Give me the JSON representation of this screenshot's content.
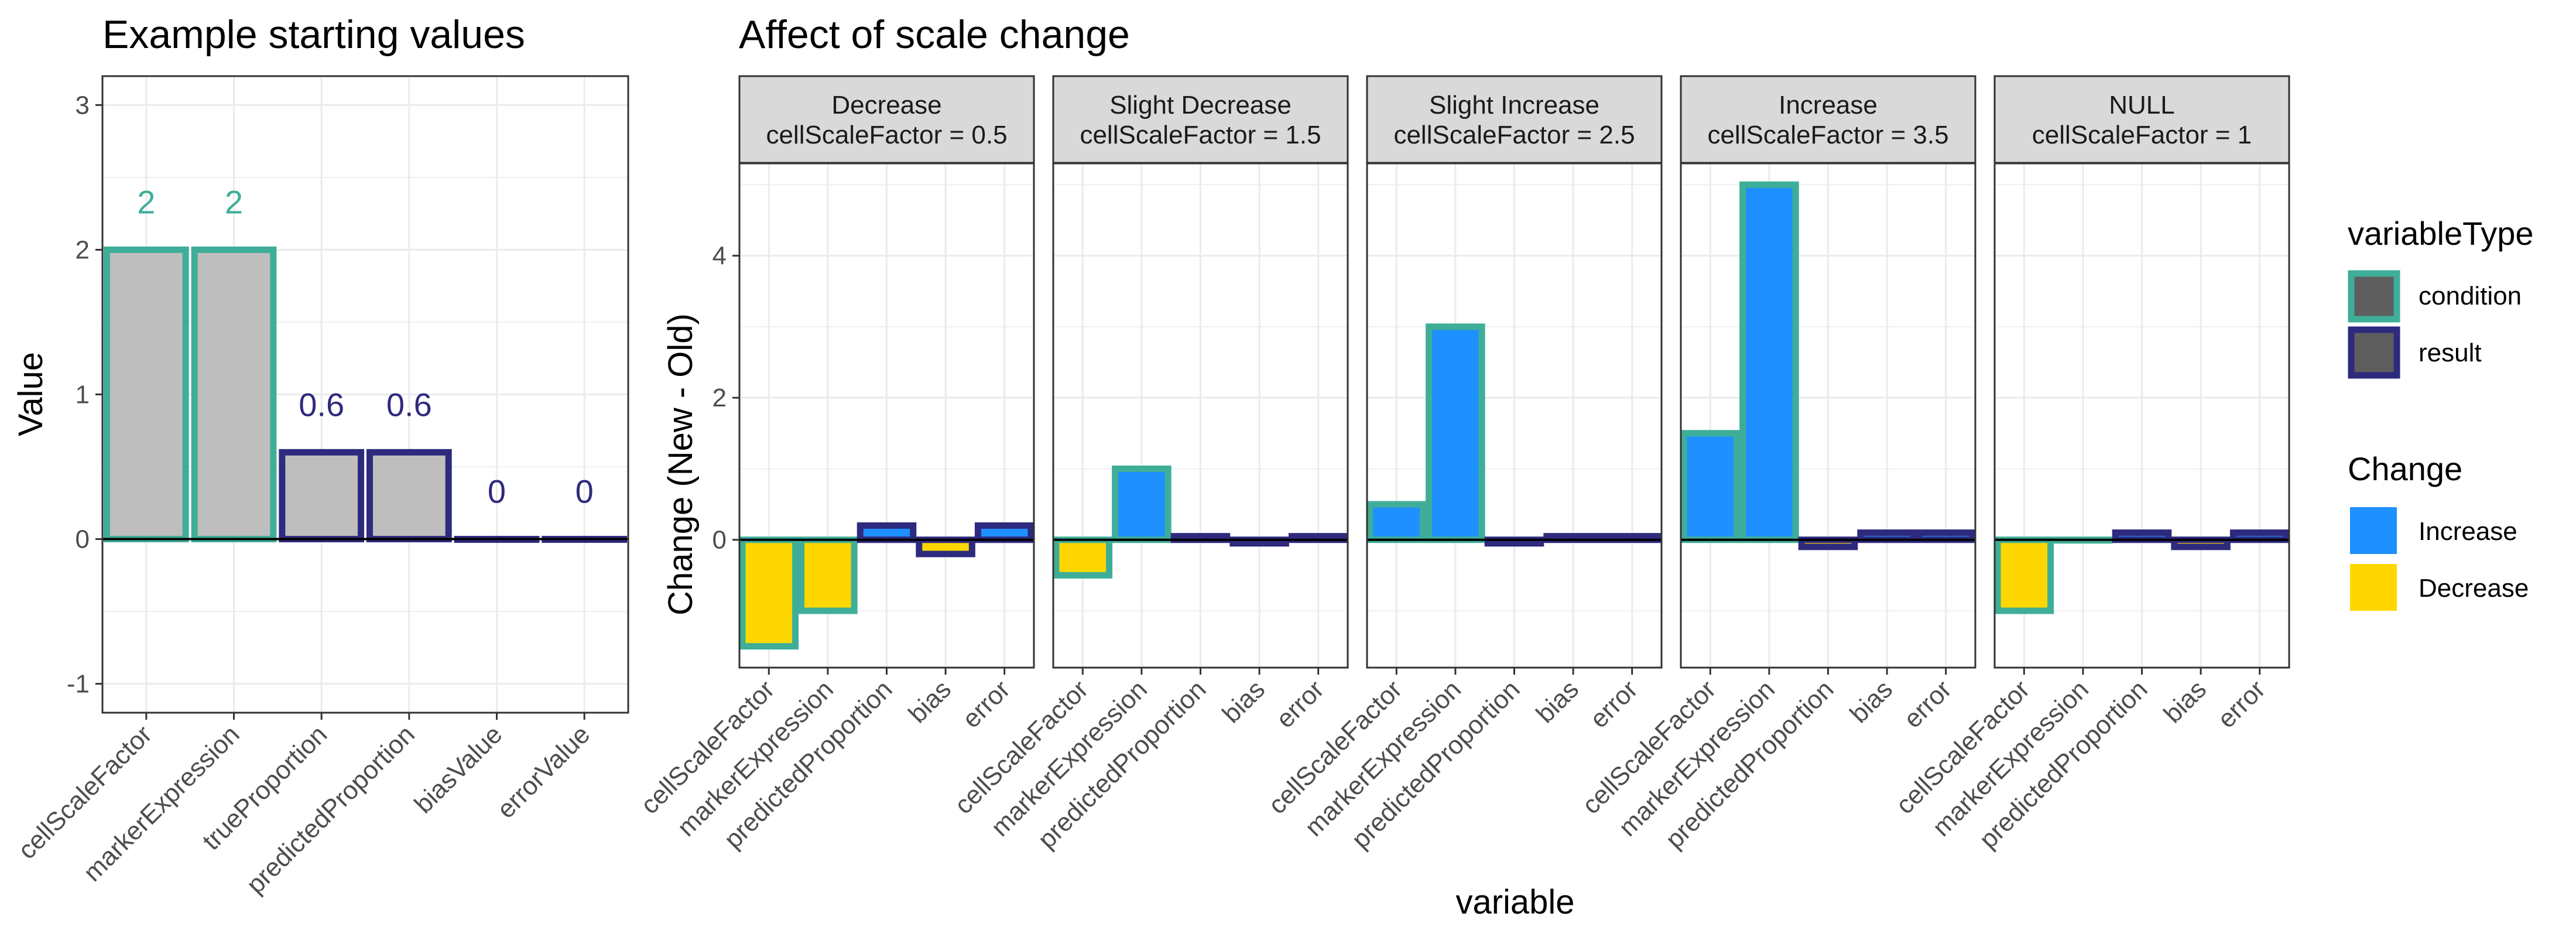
{
  "colors": {
    "condition": "#3fae98",
    "result": "#2e2a7e",
    "increase": "#1e90ff",
    "decrease": "#ffd700",
    "neutral_fill": "#bebebe",
    "strip_bg": "#d9d9d9"
  },
  "chart_data": [
    {
      "type": "bar",
      "title": "Example starting values",
      "xlabel": "",
      "ylabel": "Value",
      "ylim": [
        -1.2,
        3.2
      ],
      "yticks": [
        -1,
        0,
        1,
        2,
        3
      ],
      "ytick_labels": [
        "-1",
        "0",
        "1",
        "2",
        "3"
      ],
      "grid": true,
      "categories": [
        "cellScaleFactor",
        "markerExpression",
        "trueProportion",
        "predictedProportion",
        "biasValue",
        "errorValue"
      ],
      "values": [
        2,
        2,
        0.6,
        0.6,
        0,
        0
      ],
      "value_labels": [
        "2",
        "2",
        "0.6",
        "0.6",
        "0",
        "0"
      ],
      "variableType": [
        "condition",
        "condition",
        "result",
        "result",
        "result",
        "result"
      ]
    },
    {
      "type": "bar",
      "title": "Affect of scale change",
      "xlabel": "variable",
      "ylabel": "Change (New - Old)",
      "ylim": [
        -1.8,
        5.3
      ],
      "yticks": [
        0,
        2,
        4
      ],
      "ytick_labels": [
        "0",
        "2",
        "4"
      ],
      "grid": true,
      "categories": [
        "cellScaleFactor",
        "markerExpression",
        "predictedProportion",
        "bias",
        "error"
      ],
      "variableType": [
        "condition",
        "condition",
        "result",
        "result",
        "result"
      ],
      "panels": [
        {
          "label_line1": "Decrease",
          "label_line2": "cellScaleFactor = 0.5",
          "values": [
            -1.5,
            -1.0,
            0.2,
            -0.2,
            0.2
          ]
        },
        {
          "label_line1": "Slight Decrease",
          "label_line2": "cellScaleFactor = 1.5",
          "values": [
            -0.5,
            1.0,
            0.05,
            -0.05,
            0.05
          ]
        },
        {
          "label_line1": "Slight Increase",
          "label_line2": "cellScaleFactor = 2.5",
          "values": [
            0.5,
            3.0,
            -0.05,
            0.05,
            0.05
          ]
        },
        {
          "label_line1": "Increase",
          "label_line2": "cellScaleFactor = 3.5",
          "values": [
            1.5,
            5.0,
            -0.1,
            0.1,
            0.1
          ]
        },
        {
          "label_line1": "NULL",
          "label_line2": "cellScaleFactor = 1",
          "values": [
            -1.0,
            0.0,
            0.1,
            -0.1,
            0.1
          ]
        }
      ]
    }
  ],
  "legend": {
    "variableType": {
      "title": "variableType",
      "items": [
        {
          "key": "condition",
          "label": "condition"
        },
        {
          "key": "result",
          "label": "result"
        }
      ]
    },
    "change": {
      "title": "Change",
      "items": [
        {
          "key": "increase",
          "label": "Increase"
        },
        {
          "key": "decrease",
          "label": "Decrease"
        }
      ]
    }
  }
}
